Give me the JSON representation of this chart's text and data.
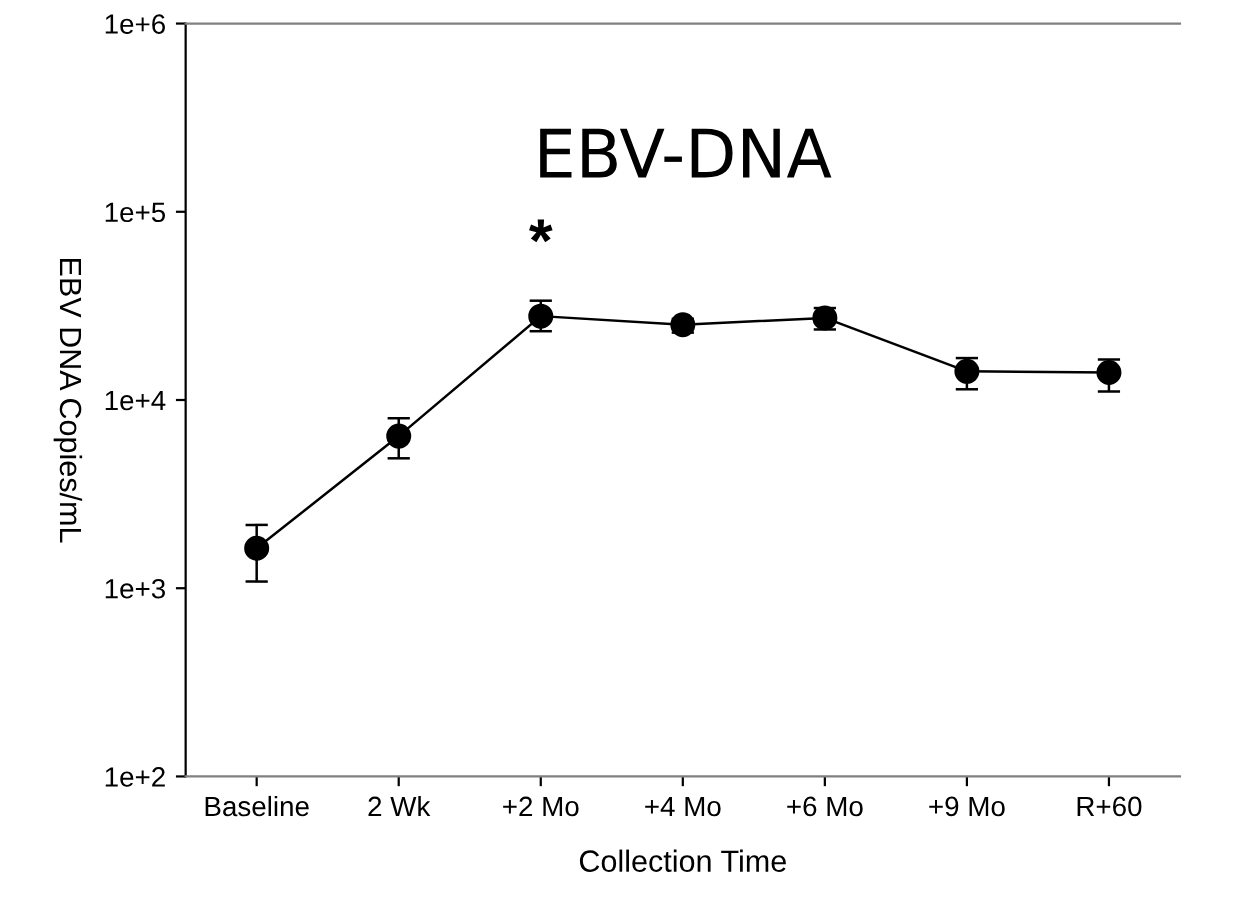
{
  "chart_data": {
    "type": "line",
    "title": "EBV-DNA",
    "xlabel": "Collection Time",
    "ylabel": "EBV DNA Copies/mL",
    "categories": [
      "Baseline",
      "2 Wk",
      "+2 Mo",
      "+4 Mo",
      "+6 Mo",
      "+9 Mo",
      "R+60"
    ],
    "series": [
      {
        "color": "#000000",
        "values": [
          1630,
          6430,
          27900,
          25100,
          27300,
          14200,
          14000
        ],
        "errors": [
          [
            1085,
            2170
          ],
          [
            4900,
            8000
          ],
          [
            23200,
            33700
          ],
          [
            22800,
            27000
          ],
          [
            23700,
            30800
          ],
          [
            11400,
            16700
          ],
          [
            11100,
            16400
          ]
        ]
      }
    ],
    "log": "y",
    "ylim": [
      100,
      1000000
    ],
    "yticks": [
      {
        "value": 100,
        "label": "1e+2"
      },
      {
        "value": 1000,
        "label": "1e+3"
      },
      {
        "value": 10000,
        "label": "1e+4"
      },
      {
        "value": 100000,
        "label": "1e+5"
      },
      {
        "value": 1000000,
        "label": "1e+6"
      }
    ],
    "annotations": [
      "*"
    ],
    "marker": "circle",
    "line_style": "solid",
    "grid": false
  }
}
